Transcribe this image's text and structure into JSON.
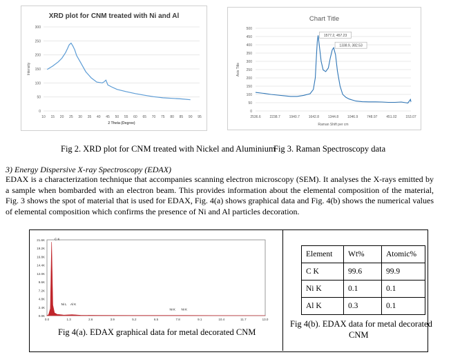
{
  "xrd": {
    "title": "XRD plot for CNM treated with Ni and Al",
    "ylabel": "Intensity",
    "xlabel": "2 Theta (Degree)",
    "yticks": [
      "300",
      "250",
      "200",
      "150",
      "100",
      "50",
      "0"
    ],
    "xticks": [
      "10",
      "15",
      "20",
      "25",
      "30",
      "35",
      "40",
      "45",
      "50",
      "55",
      "60",
      "65",
      "70",
      "75",
      "80",
      "85",
      "90",
      "95"
    ]
  },
  "raman": {
    "title": "Chart Title",
    "ylabel": "Axis Title",
    "xlabel": "Raman Shift per cm",
    "yticks": [
      "500",
      "450",
      "400",
      "350",
      "300",
      "250",
      "200",
      "150",
      "100",
      "50",
      "0"
    ],
    "xticks": [
      "2536.6",
      "2238.7",
      "1940.7",
      "1642.8",
      "1344.8",
      "1046.9",
      "748.97",
      "451.02",
      "153.07"
    ],
    "label1": "1577.2, 457.23",
    "label2": "1338.9, 382.53"
  },
  "captions": {
    "fig2": "Fig 2. XRD plot for CNM treated with Nickel and Aluminium",
    "fig3": "Fig 3. Raman Spectroscopy data",
    "fig4a": "Fig 4(a).  EDAX graphical data for metal decorated CNM",
    "fig4b_line1": "Fig 4(b).  EDAX data for metal decorated",
    "fig4b_line2": "CNM"
  },
  "section": {
    "heading": "3)   Energy Dispersive X-ray Spectroscopy (EDAX)",
    "paragraph": "EDAX is a characterization technique that accompanies scanning electron microscopy (SEM). It analyses the X-rays emitted by a sample when bombarded with an electron beam. This provides information about the elemental composition of the material, Fig. 3 shows the spot of material that is used for EDAX, Fig. 4(a) shows graphical data and Fig. 4(b) shows the numerical values of elemental composition which confirms the presence of Ni and Al particles decoration."
  },
  "edax_chart": {
    "yticks": [
      "21.6K",
      "19.2K",
      "16.8K",
      "14.4K",
      "12.0K",
      "9.6K",
      "7.2K",
      "4.8K",
      "2.4K",
      "0.0K"
    ],
    "xticks": [
      "0.0",
      "1.3",
      "2.6",
      "3.9",
      "5.2",
      "6.5",
      "7.8",
      "9.1",
      "10.4",
      "11.7",
      "13.0"
    ],
    "peak_labels": [
      "C K",
      "Ni L",
      "Al K",
      "Ni K",
      "Ni K"
    ]
  },
  "edax_table": {
    "headers": [
      "Element",
      "Wt%",
      "Atomic%"
    ],
    "rows": [
      [
        "C K",
        "99.6",
        "99.9"
      ],
      [
        "Ni K",
        "0.1",
        "0.1"
      ],
      [
        "Al K",
        "0.3",
        "0.1"
      ]
    ]
  },
  "chart_data": [
    {
      "type": "line",
      "title": "XRD plot for CNM treated with Ni and Al",
      "xlabel": "2 Theta (Degree)",
      "ylabel": "Intensity",
      "xlim": [
        10,
        95
      ],
      "ylim": [
        0,
        300
      ],
      "grid": true,
      "series": [
        {
          "x": [
            12,
            15,
            18,
            20,
            22,
            23,
            24,
            25,
            26,
            27,
            28,
            30,
            33,
            36,
            39,
            42,
            43,
            44,
            45,
            47,
            50,
            55,
            60,
            65,
            70,
            75,
            80,
            85,
            90
          ],
          "y": [
            148,
            160,
            175,
            188,
            208,
            222,
            236,
            242,
            232,
            218,
            198,
            175,
            140,
            118,
            103,
            100,
            104,
            110,
            93,
            86,
            77,
            69,
            62,
            56,
            51,
            47,
            45,
            43,
            40
          ]
        }
      ]
    },
    {
      "type": "line",
      "title": "Chart Title",
      "xlabel": "Raman Shift per cm",
      "ylabel": "Axis Title",
      "ylim": [
        0,
        500
      ],
      "grid": true,
      "series": [
        {
          "x": [
            2536.6,
            2400,
            2300,
            2200,
            2100,
            2000,
            1900,
            1800,
            1700,
            1650,
            1620,
            1600,
            1590,
            1577.2,
            1560,
            1530,
            1500,
            1460,
            1420,
            1390,
            1360,
            1338.9,
            1310,
            1280,
            1240,
            1200,
            1150,
            1100,
            1000,
            900,
            800,
            700,
            600,
            500,
            400,
            300,
            200,
            160,
            153.07
          ],
          "y": [
            112,
            106,
            100,
            96,
            92,
            88,
            88,
            94,
            104,
            130,
            200,
            350,
            420,
            457.23,
            400,
            300,
            248,
            238,
            260,
            320,
            370,
            382.53,
            340,
            240,
            150,
            100,
            82,
            72,
            60,
            56,
            55,
            55,
            54,
            52,
            52,
            54,
            48,
            70,
            55
          ]
        }
      ],
      "annotations": [
        "1577.2, 457.23",
        "1338.9, 382.53"
      ]
    },
    {
      "type": "line",
      "title": "",
      "xlabel": "",
      "ylabel": "",
      "xlim": [
        0,
        13
      ],
      "ylim": [
        0,
        21600
      ],
      "series": [
        {
          "x": [
            0.0,
            0.1,
            0.2,
            0.277,
            0.35,
            0.45,
            0.6,
            0.85,
            1.0,
            1.49,
            2.0,
            3.0,
            5.0,
            7.47,
            8.26,
            10.0,
            13.0
          ],
          "y": [
            0,
            300,
            2000,
            21000,
            3000,
            800,
            400,
            250,
            150,
            300,
            120,
            80,
            50,
            60,
            50,
            30,
            20
          ]
        }
      ]
    }
  ]
}
